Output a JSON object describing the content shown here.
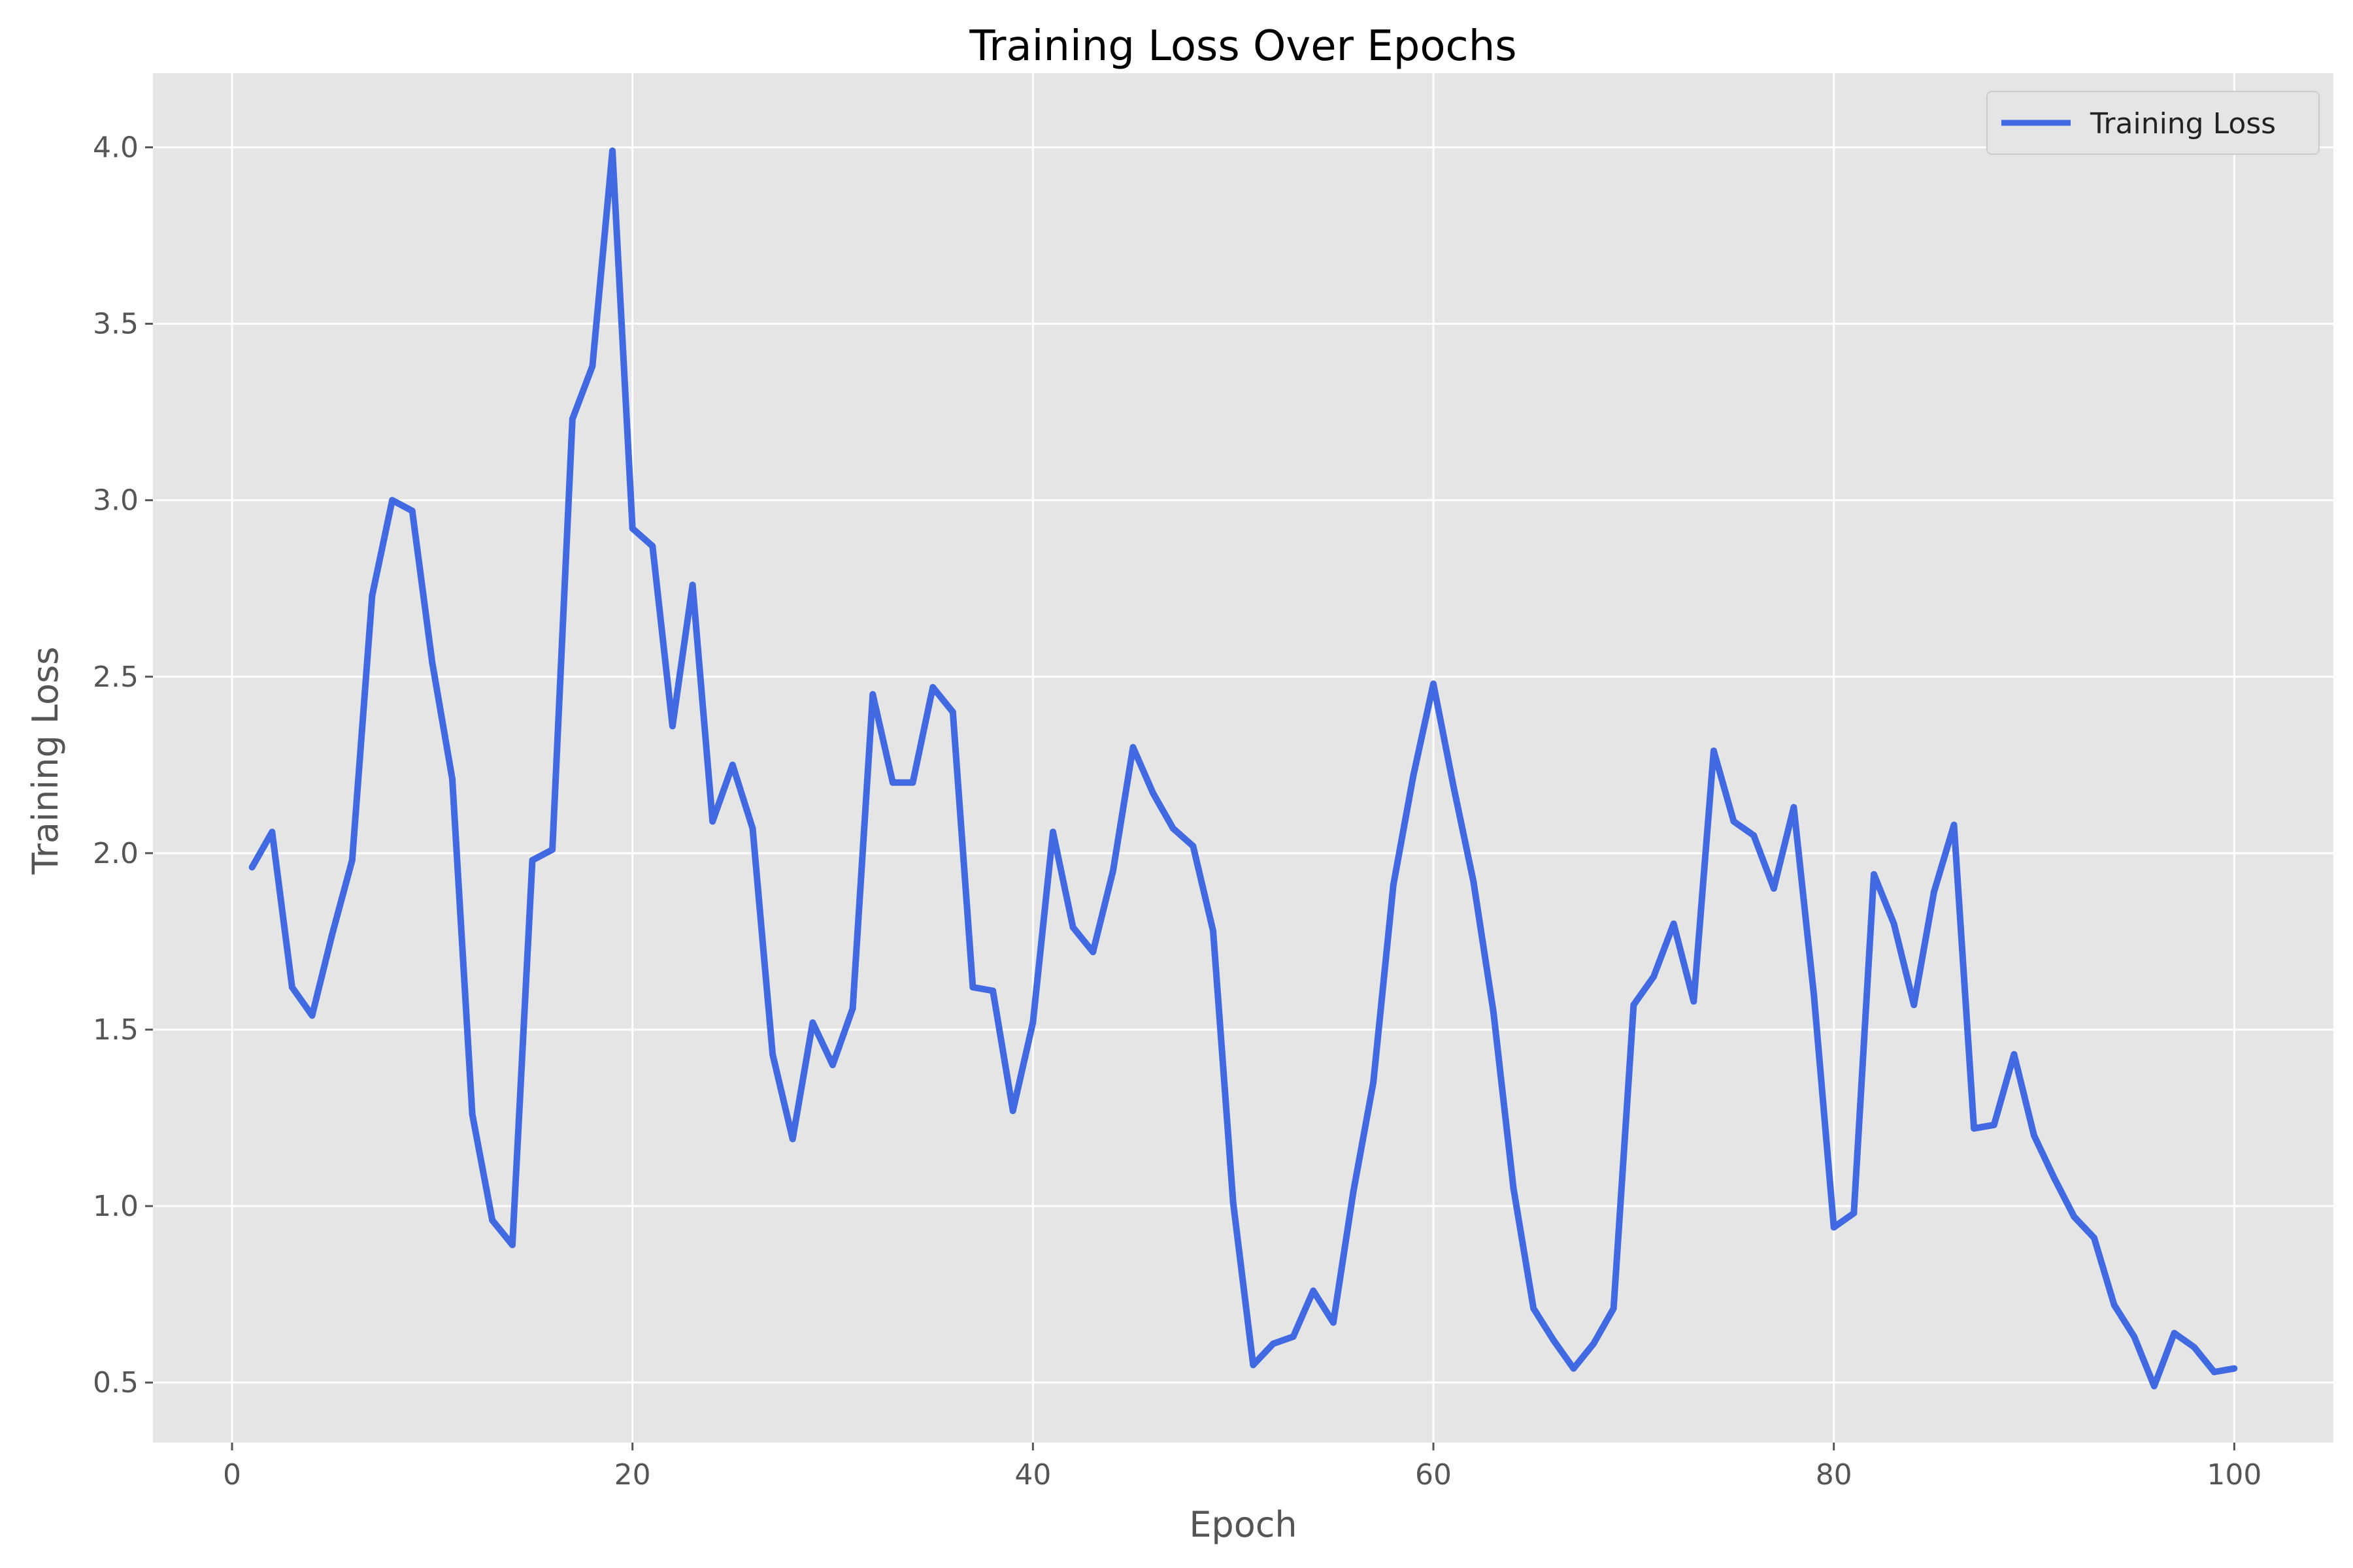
{
  "chart_data": {
    "type": "line",
    "title": "Training Loss Over Epochs",
    "xlabel": "Epoch",
    "ylabel": "Training Loss",
    "xlim": [
      -3.95,
      104.95
    ],
    "ylim": [
      0.33,
      4.21
    ],
    "x_ticks": [
      0,
      20,
      40,
      60,
      80,
      100
    ],
    "y_ticks": [
      0.5,
      1.0,
      1.5,
      2.0,
      2.5,
      3.0,
      3.5,
      4.0
    ],
    "x_tick_labels": [
      "0",
      "20",
      "40",
      "60",
      "80",
      "100"
    ],
    "y_tick_labels": [
      "0.5",
      "1.0",
      "1.5",
      "2.0",
      "2.5",
      "3.0",
      "3.5",
      "4.0"
    ],
    "grid": true,
    "legend_position": "top-right",
    "series": [
      {
        "name": "Training Loss",
        "color": "#4169e1",
        "x": [
          1,
          2,
          3,
          4,
          5,
          6,
          7,
          8,
          9,
          10,
          11,
          12,
          13,
          14,
          15,
          16,
          17,
          18,
          19,
          20,
          21,
          22,
          23,
          24,
          25,
          26,
          27,
          28,
          29,
          30,
          31,
          32,
          33,
          34,
          35,
          36,
          37,
          38,
          39,
          40,
          41,
          42,
          43,
          44,
          45,
          46,
          47,
          48,
          49,
          50,
          51,
          52,
          53,
          54,
          55,
          56,
          57,
          58,
          59,
          60,
          61,
          62,
          63,
          64,
          65,
          66,
          67,
          68,
          69,
          70,
          71,
          72,
          73,
          74,
          75,
          76,
          77,
          78,
          79,
          80,
          81,
          82,
          83,
          84,
          85,
          86,
          87,
          88,
          89,
          90,
          91,
          92,
          93,
          94,
          95,
          96,
          97,
          98,
          99,
          100
        ],
        "values": [
          1.96,
          2.06,
          1.62,
          1.54,
          1.77,
          1.98,
          2.73,
          3.0,
          2.97,
          2.54,
          2.21,
          1.26,
          0.96,
          0.89,
          1.98,
          2.01,
          3.23,
          3.38,
          3.99,
          2.92,
          2.87,
          2.36,
          2.76,
          2.09,
          2.25,
          2.07,
          1.43,
          1.19,
          1.52,
          1.4,
          1.56,
          2.45,
          2.2,
          2.2,
          2.47,
          2.4,
          1.62,
          1.61,
          1.27,
          1.52,
          2.06,
          1.79,
          1.72,
          1.95,
          2.3,
          2.17,
          2.07,
          2.02,
          1.78,
          1.01,
          0.55,
          0.61,
          0.63,
          0.76,
          0.67,
          1.04,
          1.35,
          1.91,
          2.22,
          2.48,
          2.19,
          1.92,
          1.55,
          1.05,
          0.71,
          0.62,
          0.54,
          0.61,
          0.71,
          1.57,
          1.65,
          1.8,
          1.58,
          2.29,
          2.09,
          2.05,
          1.9,
          2.13,
          1.6,
          0.94,
          0.98,
          1.94,
          1.8,
          1.57,
          1.89,
          2.08,
          1.22,
          1.23,
          1.43,
          1.2,
          1.08,
          0.97,
          0.91,
          0.72,
          0.63,
          0.49,
          0.64,
          0.6,
          0.53,
          0.54
        ]
      }
    ]
  }
}
